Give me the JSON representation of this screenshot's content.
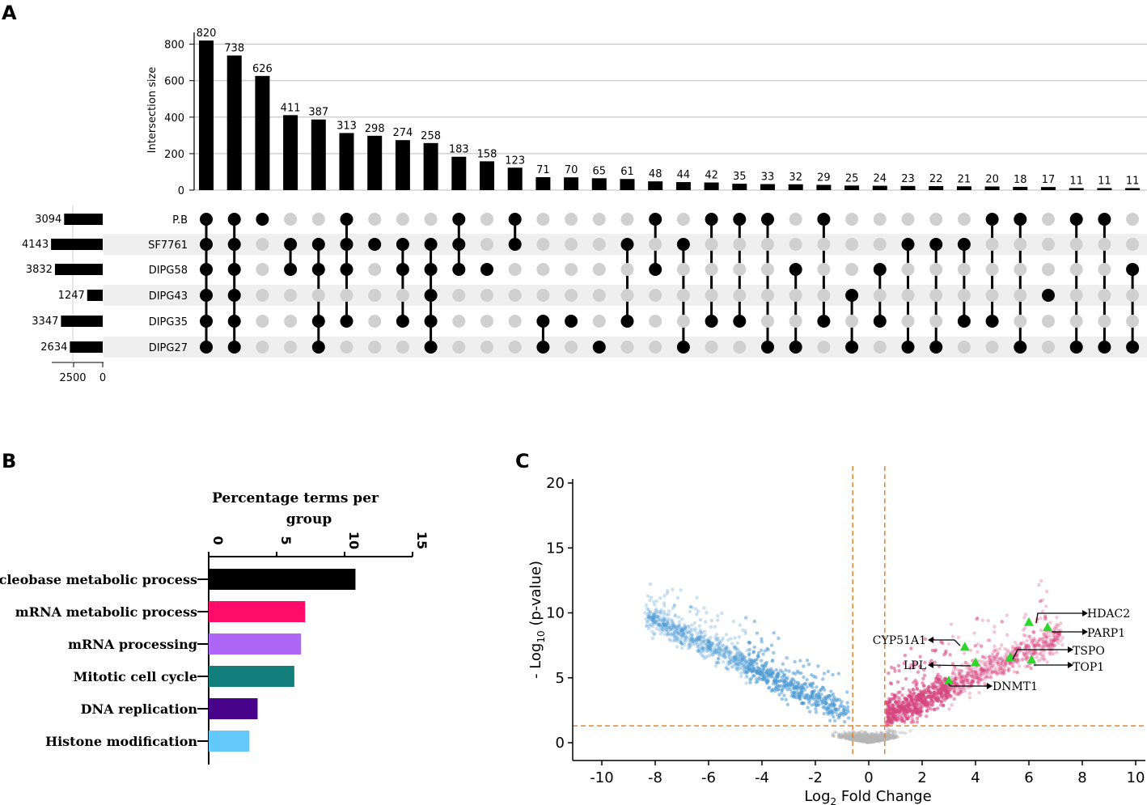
{
  "panels": {
    "a": "A",
    "b": "B",
    "c": "C"
  },
  "chart_data": [
    {
      "type": "upset",
      "ylabel": "Intersection size",
      "ylim": [
        0,
        850
      ],
      "yticks": [
        0,
        200,
        400,
        600,
        800
      ],
      "set_size_ticks": [
        "2500",
        "0"
      ],
      "sets": [
        {
          "name": "P.B",
          "size": 3094
        },
        {
          "name": "SF7761",
          "size": 4143
        },
        {
          "name": "DIPG58",
          "size": 3832
        },
        {
          "name": "DIPG43",
          "size": 1247
        },
        {
          "name": "DIPG35",
          "size": 3347
        },
        {
          "name": "DIPG27",
          "size": 2634
        }
      ],
      "intersections": [
        {
          "size": 820,
          "members": [
            0,
            1,
            2,
            3,
            4,
            5
          ]
        },
        {
          "size": 738,
          "members": [
            0,
            1,
            2,
            3,
            4,
            5
          ]
        },
        {
          "size": 626,
          "members": [
            0
          ]
        },
        {
          "size": 411,
          "members": [
            1,
            2
          ]
        },
        {
          "size": 387,
          "members": [
            1,
            2,
            4,
            5
          ]
        },
        {
          "size": 313,
          "members": [
            0,
            1,
            2,
            4
          ]
        },
        {
          "size": 298,
          "members": [
            1
          ]
        },
        {
          "size": 274,
          "members": [
            1,
            2,
            4
          ]
        },
        {
          "size": 258,
          "members": [
            1,
            2,
            3,
            4,
            5
          ]
        },
        {
          "size": 183,
          "members": [
            0,
            1,
            2
          ]
        },
        {
          "size": 158,
          "members": [
            2
          ]
        },
        {
          "size": 123,
          "members": [
            0,
            1
          ]
        },
        {
          "size": 71,
          "members": [
            4,
            5
          ]
        },
        {
          "size": 70,
          "members": [
            4
          ]
        },
        {
          "size": 65,
          "members": [
            5
          ]
        },
        {
          "size": 61,
          "members": [
            1,
            4
          ]
        },
        {
          "size": 48,
          "members": [
            0,
            2
          ]
        },
        {
          "size": 44,
          "members": [
            1,
            5
          ]
        },
        {
          "size": 42,
          "members": [
            0,
            4
          ]
        },
        {
          "size": 35,
          "members": [
            0,
            4
          ]
        },
        {
          "size": 33,
          "members": [
            0,
            5
          ]
        },
        {
          "size": 32,
          "members": [
            2,
            5
          ]
        },
        {
          "size": 29,
          "members": [
            0,
            4
          ]
        },
        {
          "size": 25,
          "members": [
            3,
            5
          ]
        },
        {
          "size": 24,
          "members": [
            2,
            4
          ]
        },
        {
          "size": 23,
          "members": [
            1,
            5
          ]
        },
        {
          "size": 22,
          "members": [
            1,
            5
          ]
        },
        {
          "size": 21,
          "members": [
            1,
            4
          ]
        },
        {
          "size": 20,
          "members": [
            0,
            4
          ]
        },
        {
          "size": 18,
          "members": [
            0,
            5
          ]
        },
        {
          "size": 17,
          "members": [
            3
          ]
        },
        {
          "size": 11,
          "members": [
            0,
            5
          ]
        },
        {
          "size": 11,
          "members": [
            0,
            5
          ]
        },
        {
          "size": 11,
          "members": [
            2,
            5
          ]
        }
      ]
    },
    {
      "type": "bar",
      "orientation": "horizontal",
      "title": "Percentage terms per group",
      "xlim": [
        0,
        15
      ],
      "xticks": [
        0,
        5,
        10,
        15
      ],
      "categories": [
        "Nucleobase metabolic process",
        "mRNA metabolic process",
        "mRNA processing",
        "Mitotic cell cycle",
        "DNA replication",
        "Histone modification"
      ],
      "values": [
        10.8,
        7.1,
        6.8,
        6.3,
        3.6,
        3.0
      ],
      "colors": [
        "#000000",
        "#ff0b6a",
        "#ae66f7",
        "#137f7c",
        "#470389",
        "#63c9fa"
      ]
    },
    {
      "type": "scatter",
      "subtype": "volcano",
      "xlabel": "Log2 Fold Change",
      "ylabel": "- Log10 (p-value)",
      "xlim": [
        -11,
        10.2
      ],
      "ylim": [
        -1,
        21.5
      ],
      "xticks": [
        -10,
        -8,
        -6,
        -4,
        -2,
        0,
        2,
        4,
        6,
        8,
        10
      ],
      "yticks": [
        0,
        5,
        10,
        15,
        20
      ],
      "fc_thresholds": [
        -0.6,
        0.6
      ],
      "p_threshold": 1.3,
      "colors": {
        "down": "#4e9bd4",
        "up": "#d6457f",
        "ns": "#b5b5b5",
        "highlight": "#2ed62e",
        "threshold": "#e8822f"
      },
      "highlighted_genes": [
        {
          "gene": "HDAC2",
          "x": 6.0,
          "y": 9.3
        },
        {
          "gene": "PARP1",
          "x": 6.7,
          "y": 8.9
        },
        {
          "gene": "TSPO",
          "x": 5.3,
          "y": 6.6
        },
        {
          "gene": "TOP1",
          "x": 6.1,
          "y": 6.4
        },
        {
          "gene": "CYP51A1",
          "x": 3.6,
          "y": 7.4
        },
        {
          "gene": "LPL",
          "x": 4.0,
          "y": 6.2
        },
        {
          "gene": "DNMT1",
          "x": 3.0,
          "y": 4.8
        }
      ]
    }
  ]
}
